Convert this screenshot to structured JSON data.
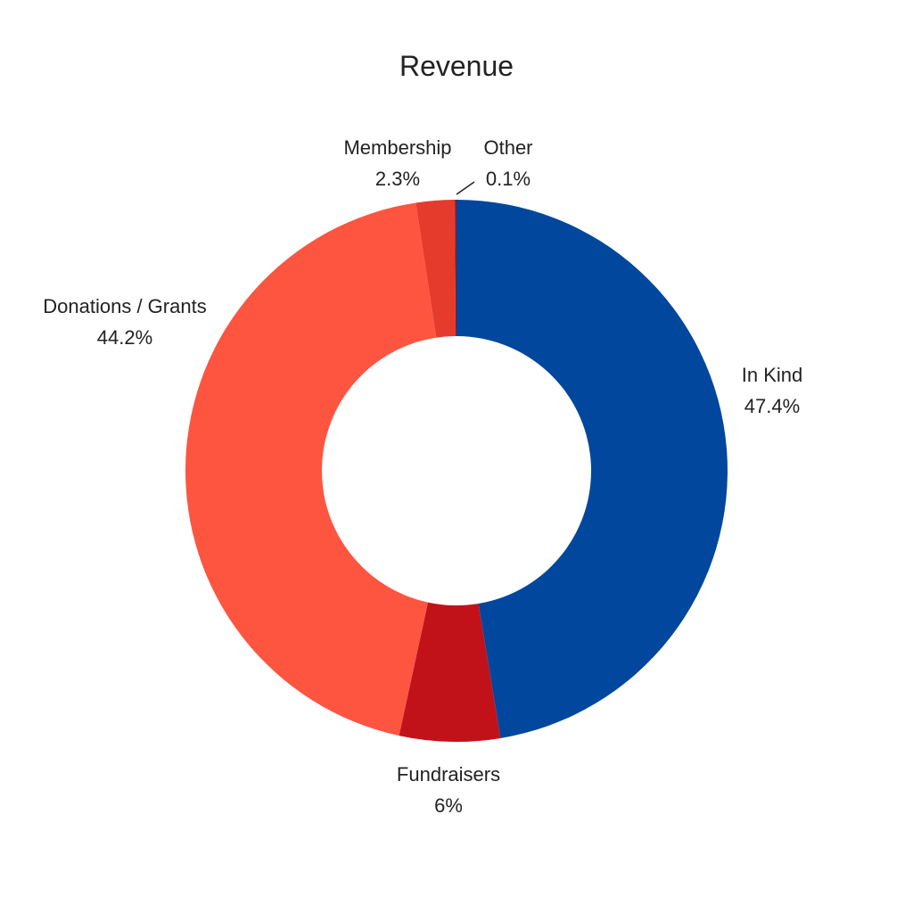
{
  "chart_data": {
    "type": "pie",
    "variant": "donut",
    "title": "Revenue",
    "slices": [
      {
        "label": "In Kind",
        "value": 47.4,
        "value_label": "47.4%",
        "color": "#00479d"
      },
      {
        "label": "Fundraisers",
        "value": 6,
        "value_label": "6%",
        "color": "#c1121a"
      },
      {
        "label": "Donations / Grants",
        "value": 44.2,
        "value_label": "44.2%",
        "color": "#fe5541"
      },
      {
        "label": "Membership",
        "value": 2.3,
        "value_label": "2.3%",
        "color": "#e53b2c"
      },
      {
        "label": "Other",
        "value": 0.1,
        "value_label": "0.1%",
        "color": "#8b1a1a"
      }
    ],
    "legend": "none",
    "labels": "outside"
  }
}
